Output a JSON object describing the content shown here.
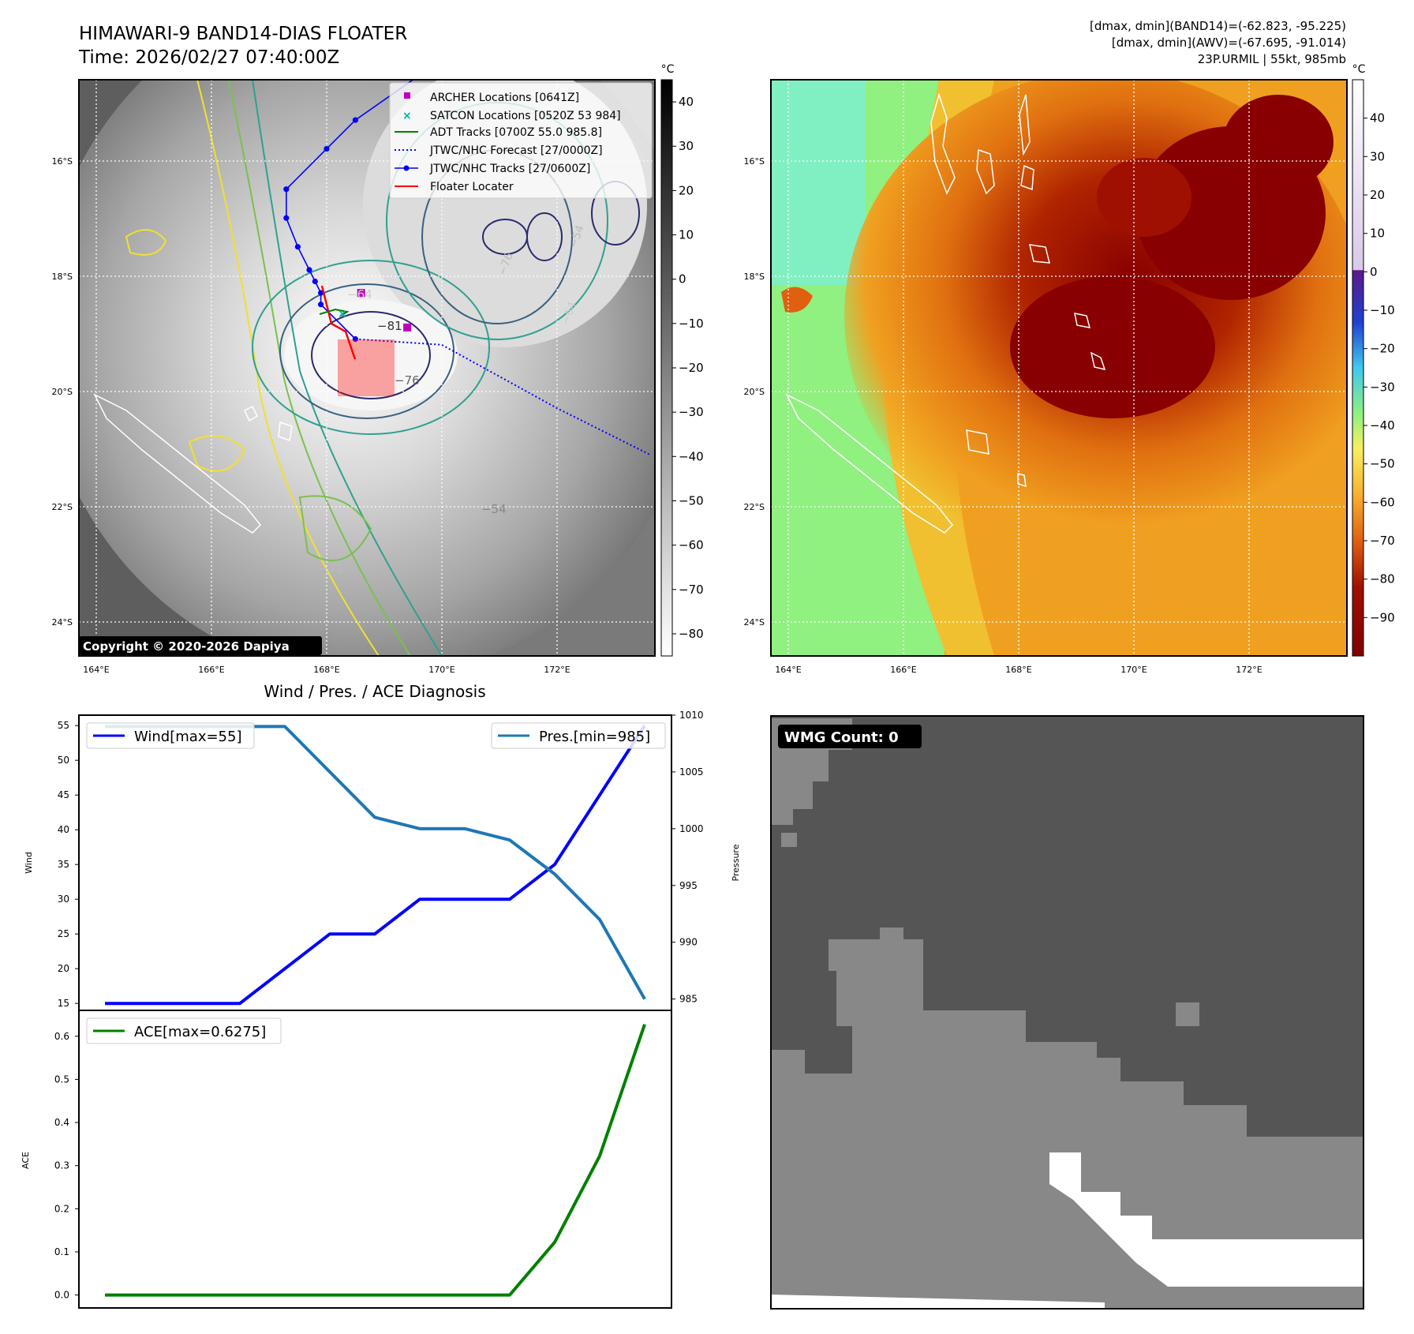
{
  "header": {
    "title": "HIMAWARI-9 BAND14-DIAS FLOATER",
    "time": "Time: 2026/02/27 07:40:00Z",
    "stats_line1": "[dmax, dmin](BAND14)=(-62.823, -95.225)",
    "stats_line2": "[dmax, dmin](AWV)=(-67.695, -91.014)",
    "stats_line3": "23P.URMIL | 55kt, 985mb"
  },
  "maps": {
    "lat_ticks": [
      "16°S",
      "18°S",
      "20°S",
      "22°S",
      "24°S"
    ],
    "lon_ticks": [
      "164°E",
      "166°E",
      "168°E",
      "170°E",
      "172°E"
    ],
    "copyright": "Copyright © 2020-2026 Dapiya",
    "unit": "°C",
    "colorbar1_ticks": [
      "40",
      "30",
      "20",
      "10",
      "0",
      "−10",
      "−20",
      "−30",
      "−40",
      "−50",
      "−60",
      "−70",
      "−80"
    ],
    "colorbar2_ticks": [
      "40",
      "30",
      "20",
      "10",
      "0",
      "−10",
      "−20",
      "−30",
      "−40",
      "−50",
      "−60",
      "−70",
      "−80",
      "−90"
    ],
    "contour_labels": [
      "−64",
      "−81",
      "−76",
      "−54",
      "−64",
      "−76",
      "−54",
      "−71"
    ],
    "legend": [
      {
        "label": "ARCHER Locations [0641Z]",
        "color": "#c000c0"
      },
      {
        "label": "SATCON Locations [0520Z 53 984]",
        "color": "#00b0b0"
      },
      {
        "label": "ADT Tracks [0700Z 55.0 985.8]",
        "color": "#008000"
      },
      {
        "label": "JTWC/NHC Forecast [27/0000Z]",
        "color": "#0000ff"
      },
      {
        "label": "JTWC/NHC Tracks [27/0600Z]",
        "color": "#0000ff"
      },
      {
        "label": "Floater Locater",
        "color": "#ff0000"
      }
    ],
    "track_points": [
      {
        "lon": 169.5,
        "lat": -14.9
      },
      {
        "lon": 168.5,
        "lat": -15.6
      },
      {
        "lon": 168.0,
        "lat": -16.1
      },
      {
        "lon": 167.3,
        "lat": -16.8
      },
      {
        "lon": 167.3,
        "lat": -17.3
      },
      {
        "lon": 167.5,
        "lat": -17.8
      },
      {
        "lon": 167.7,
        "lat": -18.2
      },
      {
        "lon": 167.8,
        "lat": -18.4
      },
      {
        "lon": 167.9,
        "lat": -18.6
      },
      {
        "lon": 167.9,
        "lat": -18.8
      },
      {
        "lon": 168.5,
        "lat": -19.4
      }
    ],
    "forecast_points": [
      {
        "lon": 168.5,
        "lat": -19.4
      },
      {
        "lon": 170.0,
        "lat": -19.5
      },
      {
        "lon": 172.0,
        "lat": -20.6
      },
      {
        "lon": 173.6,
        "lat": -21.4
      }
    ],
    "archer_points": [
      {
        "lon": 168.6,
        "lat": -18.6
      },
      {
        "lon": 169.4,
        "lat": -19.2
      }
    ]
  },
  "diagnosis": {
    "title": "Wind / Pres. / ACE Diagnosis",
    "wind_axis_label": "Wind",
    "pressure_axis_label": "Pressure",
    "ace_axis_label": "ACE",
    "wind_legend": "Wind[max=55]",
    "pres_legend": "Pres.[min=985]",
    "ace_legend": "ACE[max=0.6275]",
    "wind_ticks": [
      "15",
      "20",
      "25",
      "30",
      "35",
      "40",
      "45",
      "50",
      "55"
    ],
    "pres_ticks": [
      "985",
      "990",
      "995",
      "1000",
      "1005",
      "1010"
    ],
    "ace_ticks": [
      "0.0",
      "0.1",
      "0.2",
      "0.3",
      "0.4",
      "0.5",
      "0.6"
    ],
    "wmg_label": "WMG Count: 0"
  },
  "chart_data": [
    {
      "type": "line",
      "title": "Wind / Pres. / ACE Diagnosis",
      "ylabel": "Wind",
      "y2label": "Pressure",
      "x": [
        0,
        1,
        2,
        3,
        4,
        5,
        6,
        7,
        8,
        9,
        10,
        11,
        12
      ],
      "series": [
        {
          "name": "Wind[max=55]",
          "axis": "left",
          "color": "#0000ff",
          "values": [
            15,
            15,
            15,
            15,
            20,
            25,
            25,
            30,
            30,
            30,
            35,
            45,
            55
          ]
        },
        {
          "name": "Pres.[min=985]",
          "axis": "right",
          "color": "#1f77b4",
          "values": [
            1009,
            1009,
            1009,
            1009,
            1009,
            1005,
            1001,
            1000,
            1000,
            999,
            996,
            992,
            985
          ]
        }
      ],
      "ylim": [
        14,
        56.5
      ],
      "y2lim": [
        984,
        1010
      ],
      "grid": false,
      "legend": "top-left / top-right"
    },
    {
      "type": "line",
      "ylabel": "ACE",
      "x": [
        0,
        1,
        2,
        3,
        4,
        5,
        6,
        7,
        8,
        9,
        10,
        11,
        12
      ],
      "series": [
        {
          "name": "ACE[max=0.6275]",
          "color": "#008000",
          "values": [
            0,
            0,
            0,
            0,
            0,
            0,
            0,
            0,
            0,
            0,
            0.1225,
            0.3225,
            0.6275
          ]
        }
      ],
      "ylim": [
        -0.03,
        0.66
      ],
      "grid": false,
      "legend": "top-left"
    }
  ]
}
